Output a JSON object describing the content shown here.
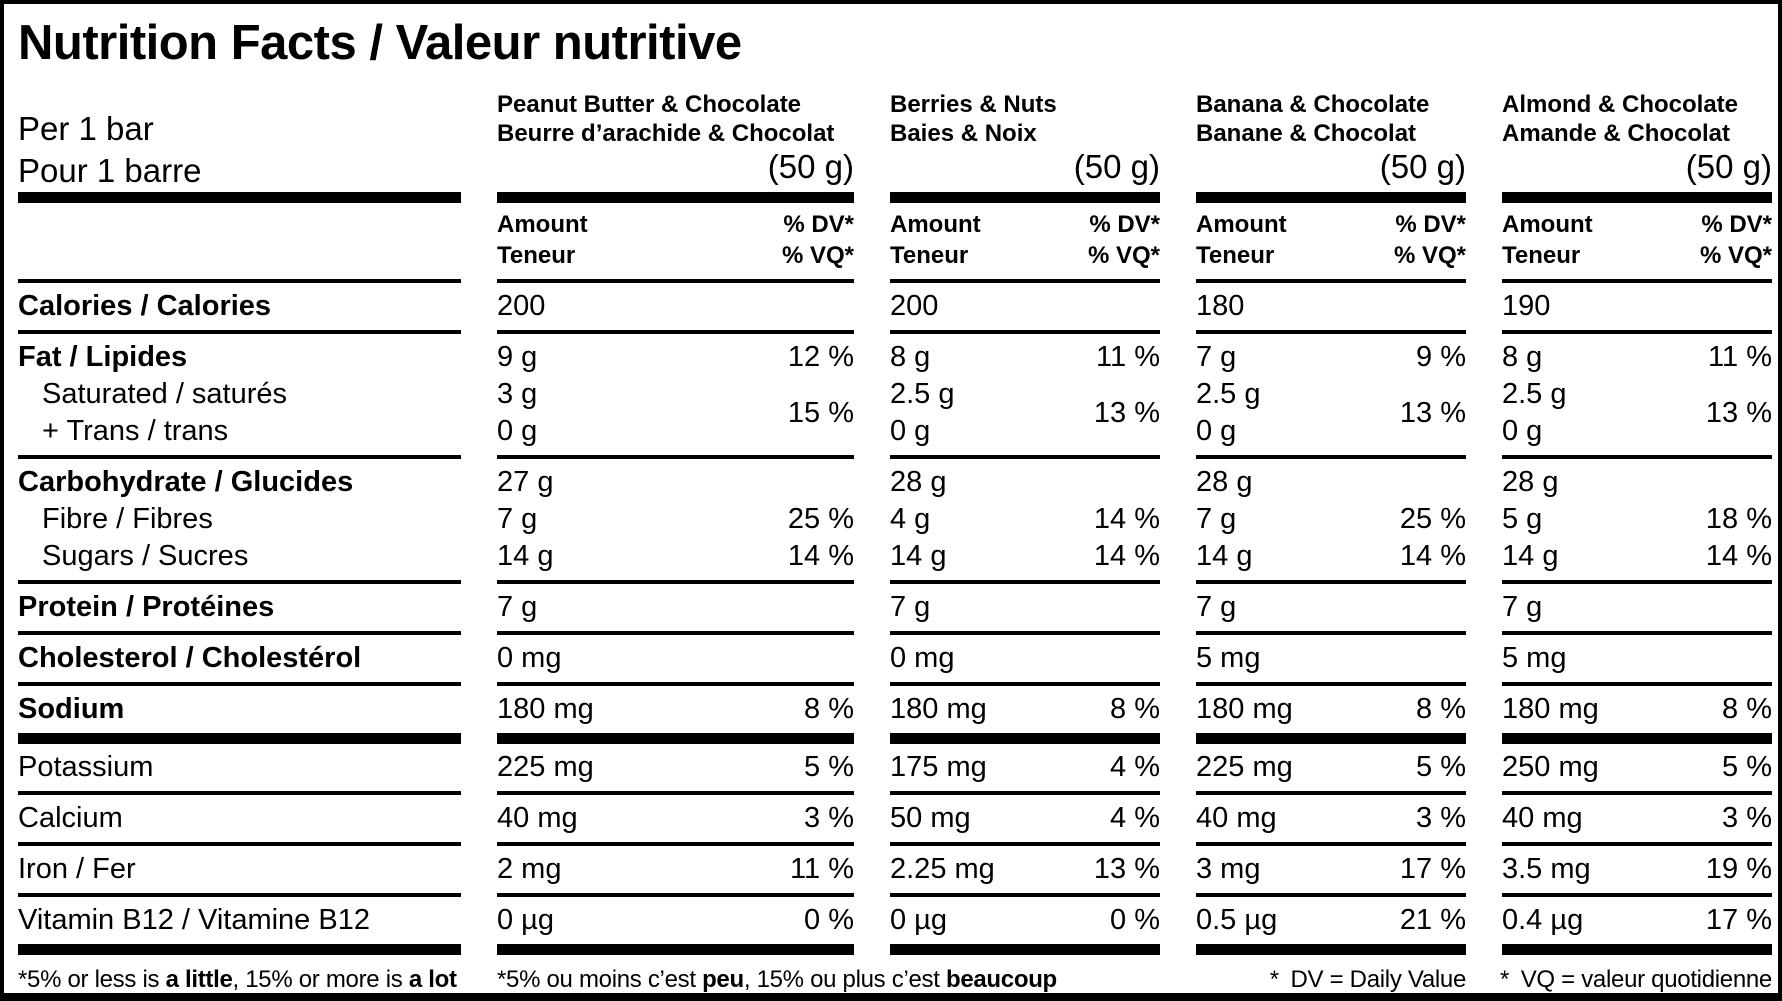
{
  "colors": {
    "ink": "#000000",
    "background": "#ffffff"
  },
  "title": "Nutrition Facts / Valeur nutritive",
  "serving": {
    "line1": "Per 1 bar",
    "line2": "Pour 1 barre"
  },
  "products": [
    {
      "name_line1": "Peanut Butter & Chocolate",
      "name_line2": "Beurre d’arachide & Chocolat",
      "size": "(50 g)"
    },
    {
      "name_line1": "Berries & Nuts",
      "name_line2": "Baies & Noix",
      "size": "(50 g)"
    },
    {
      "name_line1": "Banana & Chocolate",
      "name_line2": "Banane & Chocolat",
      "size": "(50 g)"
    },
    {
      "name_line1": "Almond & Chocolate",
      "name_line2": "Amande & Chocolat",
      "size": "(50 g)"
    }
  ],
  "column_header": {
    "amount_en": "Amount",
    "amount_fr": "Teneur",
    "dv_en": "% DV*",
    "dv_fr": "% VQ*"
  },
  "sections": [
    {
      "id": "calories",
      "labels": [
        {
          "text": "Calories / Calories",
          "style": "bold"
        }
      ],
      "cells": [
        {
          "parts": [
            {
              "amount": "200",
              "dv": ""
            }
          ]
        },
        {
          "parts": [
            {
              "amount": "200",
              "dv": ""
            }
          ]
        },
        {
          "parts": [
            {
              "amount": "180",
              "dv": ""
            }
          ]
        },
        {
          "parts": [
            {
              "amount": "190",
              "dv": ""
            }
          ]
        }
      ],
      "rule": "thin"
    },
    {
      "id": "fat",
      "labels": [
        {
          "text": "Fat / Lipides",
          "style": "bold"
        },
        {
          "text": "Saturated / saturés",
          "style": "indent"
        },
        {
          "text": "+ Trans / trans",
          "style": "indent"
        }
      ],
      "cells": [
        {
          "parts": [
            {
              "amount": "9 g",
              "dv": "12 %"
            },
            {
              "stack": [
                "3 g",
                "0 g"
              ],
              "dv": "15 %"
            }
          ]
        },
        {
          "parts": [
            {
              "amount": "8 g",
              "dv": "11 %"
            },
            {
              "stack": [
                "2.5 g",
                "0 g"
              ],
              "dv": "13 %"
            }
          ]
        },
        {
          "parts": [
            {
              "amount": "7 g",
              "dv": "9 %"
            },
            {
              "stack": [
                "2.5 g",
                "0 g"
              ],
              "dv": "13 %"
            }
          ]
        },
        {
          "parts": [
            {
              "amount": "8 g",
              "dv": "11 %"
            },
            {
              "stack": [
                "2.5 g",
                "0 g"
              ],
              "dv": "13 %"
            }
          ]
        }
      ],
      "rule": "thin"
    },
    {
      "id": "carbohydrate",
      "labels": [
        {
          "text": "Carbohydrate / Glucides",
          "style": "bold"
        },
        {
          "text": "Fibre / Fibres",
          "style": "indent"
        },
        {
          "text": "Sugars / Sucres",
          "style": "indent"
        }
      ],
      "cells": [
        {
          "parts": [
            {
              "amount": "27 g",
              "dv": ""
            },
            {
              "amount": "7 g",
              "dv": "25 %"
            },
            {
              "amount": "14 g",
              "dv": "14 %"
            }
          ]
        },
        {
          "parts": [
            {
              "amount": "28 g",
              "dv": ""
            },
            {
              "amount": "4 g",
              "dv": "14 %"
            },
            {
              "amount": "14 g",
              "dv": "14 %"
            }
          ]
        },
        {
          "parts": [
            {
              "amount": "28 g",
              "dv": ""
            },
            {
              "amount": "7 g",
              "dv": "25 %"
            },
            {
              "amount": "14 g",
              "dv": "14 %"
            }
          ]
        },
        {
          "parts": [
            {
              "amount": "28 g",
              "dv": ""
            },
            {
              "amount": "5 g",
              "dv": "18 %"
            },
            {
              "amount": "14 g",
              "dv": "14 %"
            }
          ]
        }
      ],
      "rule": "thin"
    },
    {
      "id": "protein",
      "labels": [
        {
          "text": "Protein / Protéines",
          "style": "bold"
        }
      ],
      "cells": [
        {
          "parts": [
            {
              "amount": "7 g",
              "dv": ""
            }
          ]
        },
        {
          "parts": [
            {
              "amount": "7 g",
              "dv": ""
            }
          ]
        },
        {
          "parts": [
            {
              "amount": "7 g",
              "dv": ""
            }
          ]
        },
        {
          "parts": [
            {
              "amount": "7 g",
              "dv": ""
            }
          ]
        }
      ],
      "rule": "thin"
    },
    {
      "id": "cholesterol",
      "labels": [
        {
          "text": "Cholesterol / Cholestérol",
          "style": "bold"
        }
      ],
      "cells": [
        {
          "parts": [
            {
              "amount": "0 mg",
              "dv": ""
            }
          ]
        },
        {
          "parts": [
            {
              "amount": "0 mg",
              "dv": ""
            }
          ]
        },
        {
          "parts": [
            {
              "amount": "5 mg",
              "dv": ""
            }
          ]
        },
        {
          "parts": [
            {
              "amount": "5 mg",
              "dv": ""
            }
          ]
        }
      ],
      "rule": "thin"
    },
    {
      "id": "sodium",
      "labels": [
        {
          "text": "Sodium",
          "style": "bold"
        }
      ],
      "cells": [
        {
          "parts": [
            {
              "amount": "180 mg",
              "dv": "8 %"
            }
          ]
        },
        {
          "parts": [
            {
              "amount": "180 mg",
              "dv": "8 %"
            }
          ]
        },
        {
          "parts": [
            {
              "amount": "180 mg",
              "dv": "8 %"
            }
          ]
        },
        {
          "parts": [
            {
              "amount": "180 mg",
              "dv": "8 %"
            }
          ]
        }
      ],
      "rule": "thick"
    },
    {
      "id": "potassium",
      "labels": [
        {
          "text": "Potassium",
          "style": "regular"
        }
      ],
      "cells": [
        {
          "parts": [
            {
              "amount": "225 mg",
              "dv": "5 %"
            }
          ]
        },
        {
          "parts": [
            {
              "amount": "175 mg",
              "dv": "4 %"
            }
          ]
        },
        {
          "parts": [
            {
              "amount": "225 mg",
              "dv": "5 %"
            }
          ]
        },
        {
          "parts": [
            {
              "amount": "250 mg",
              "dv": "5 %"
            }
          ]
        }
      ],
      "rule": "thin"
    },
    {
      "id": "calcium",
      "labels": [
        {
          "text": "Calcium",
          "style": "regular"
        }
      ],
      "cells": [
        {
          "parts": [
            {
              "amount": "40 mg",
              "dv": "3 %"
            }
          ]
        },
        {
          "parts": [
            {
              "amount": "50 mg",
              "dv": "4 %"
            }
          ]
        },
        {
          "parts": [
            {
              "amount": "40 mg",
              "dv": "3 %"
            }
          ]
        },
        {
          "parts": [
            {
              "amount": "40 mg",
              "dv": "3 %"
            }
          ]
        }
      ],
      "rule": "thin"
    },
    {
      "id": "iron",
      "labels": [
        {
          "text": "Iron / Fer",
          "style": "regular"
        }
      ],
      "cells": [
        {
          "parts": [
            {
              "amount": "2 mg",
              "dv": "11 %"
            }
          ]
        },
        {
          "parts": [
            {
              "amount": "2.25 mg",
              "dv": "13 %"
            }
          ]
        },
        {
          "parts": [
            {
              "amount": "3 mg",
              "dv": "17 %"
            }
          ]
        },
        {
          "parts": [
            {
              "amount": "3.5 mg",
              "dv": "19 %"
            }
          ]
        }
      ],
      "rule": "thin"
    },
    {
      "id": "vitamin-b12",
      "labels": [
        {
          "text": "Vitamin B12 / Vitamine B12",
          "style": "regular"
        }
      ],
      "cells": [
        {
          "parts": [
            {
              "amount": "0 µg",
              "dv": "0 %"
            }
          ]
        },
        {
          "parts": [
            {
              "amount": "0 µg",
              "dv": "0 %"
            }
          ]
        },
        {
          "parts": [
            {
              "amount": "0.5 µg",
              "dv": "21 %"
            }
          ]
        },
        {
          "parts": [
            {
              "amount": "0.4 µg",
              "dv": "17 %"
            }
          ]
        }
      ],
      "rule": "thick"
    }
  ],
  "footnotes": {
    "en": [
      {
        "t": "*5% or less is "
      },
      {
        "t": "a little",
        "b": true
      },
      {
        "t": ", 15% or more is "
      },
      {
        "t": "a lot",
        "b": true
      }
    ],
    "fr": [
      {
        "t": "*5% ou moins c’est "
      },
      {
        "t": "peu",
        "b": true
      },
      {
        "t": ", 15% ou plus c’est "
      },
      {
        "t": "beaucoup",
        "b": true
      }
    ],
    "dv": "* DV = Daily Value",
    "vq": "* VQ = valeur quotidienne"
  }
}
